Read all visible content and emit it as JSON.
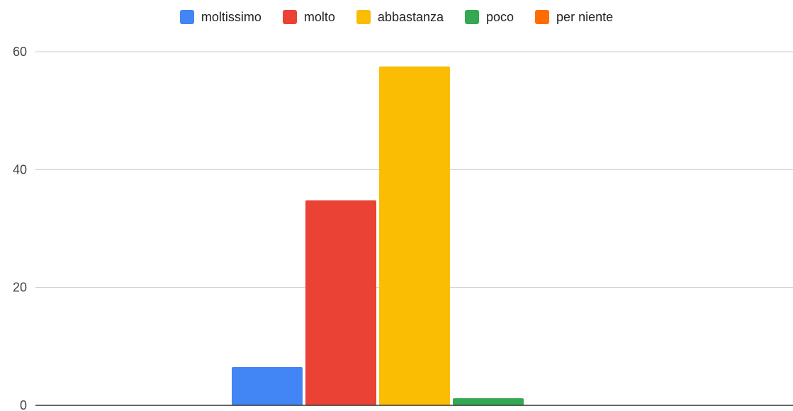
{
  "chart_data": {
    "type": "bar",
    "categories": [
      ""
    ],
    "series": [
      {
        "name": "moltissimo",
        "values": [
          6.5
        ],
        "color": "#4285F4"
      },
      {
        "name": "molto",
        "values": [
          34.8
        ],
        "color": "#EA4335"
      },
      {
        "name": "abbastanza",
        "values": [
          57.5
        ],
        "color": "#FBBC04"
      },
      {
        "name": "poco",
        "values": [
          1.2
        ],
        "color": "#34A853"
      },
      {
        "name": "per niente",
        "values": [
          0
        ],
        "color": "#FF6D01"
      }
    ],
    "title": "",
    "xlabel": "",
    "ylabel": "",
    "ylim": [
      0,
      60
    ],
    "yticks": [
      "0",
      "20",
      "40",
      "60"
    ],
    "grid": true,
    "legend_position": "top"
  }
}
